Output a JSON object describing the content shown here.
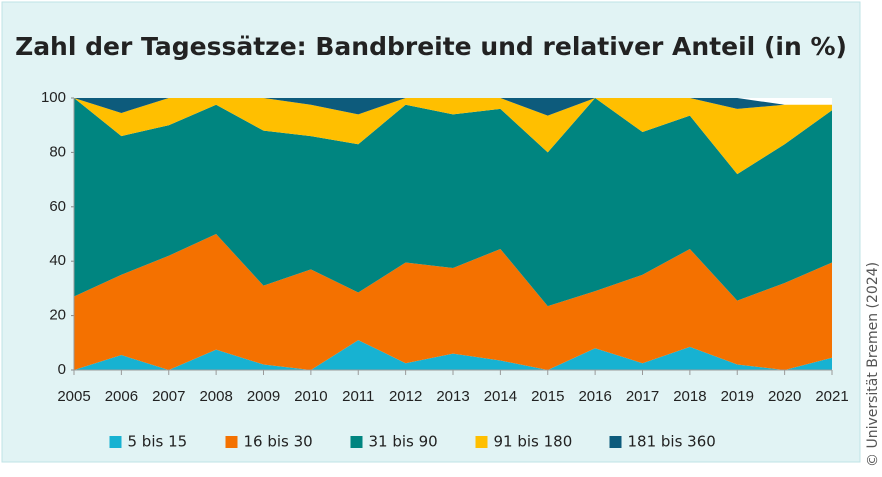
{
  "chart_data": {
    "type": "stacked_area",
    "title": "Zahl der Tagessätze: Bandbreite und relativer Anteil (in %)",
    "credit": "© Universität Bremen (2024)",
    "x": [
      2005,
      2006,
      2007,
      2008,
      2009,
      2010,
      2011,
      2012,
      2013,
      2014,
      2015,
      2016,
      2017,
      2018,
      2019,
      2020,
      2021
    ],
    "xlim": [
      2005,
      2021
    ],
    "xticks": [
      2005,
      2006,
      2007,
      2008,
      2009,
      2010,
      2011,
      2012,
      2013,
      2014,
      2015,
      2016,
      2017,
      2018,
      2019,
      2020,
      2021
    ],
    "ylim": [
      0,
      100
    ],
    "yticks": [
      0,
      20,
      40,
      60,
      80,
      100
    ],
    "legend": "bottom",
    "series": [
      {
        "name": "5 bis 15",
        "color": "#17b2d2",
        "values": [
          0,
          5.5,
          0,
          7.5,
          2,
          0,
          11,
          2.5,
          6,
          3.5,
          0,
          8,
          2.5,
          8.5,
          2,
          0,
          4.5
        ]
      },
      {
        "name": "16 bis 30",
        "color": "#f47100",
        "values": [
          27,
          29.5,
          42,
          42.5,
          29,
          37,
          17.5,
          37,
          31.5,
          41,
          23.5,
          21,
          32.5,
          36,
          23.5,
          32,
          35
        ]
      },
      {
        "name": "31 bis 90",
        "color": "#008580",
        "values": [
          73,
          51,
          48,
          47.5,
          57,
          49,
          54.5,
          58,
          56.5,
          51.5,
          56.5,
          71,
          52.5,
          49,
          46.5,
          51,
          56
        ]
      },
      {
        "name": "91 bis 180",
        "color": "#ffbf00",
        "values": [
          0,
          8.5,
          10,
          2.5,
          12,
          11.5,
          11,
          2.5,
          6,
          4,
          13.5,
          0,
          12.5,
          6.5,
          24,
          14.5,
          2
        ]
      },
      {
        "name": "181 bis 360",
        "color": "#0d5b7c",
        "values": [
          0,
          5.5,
          0,
          0,
          0,
          2.5,
          6,
          0,
          0,
          0,
          6.5,
          0,
          0,
          0,
          4,
          0,
          0
        ]
      }
    ]
  }
}
